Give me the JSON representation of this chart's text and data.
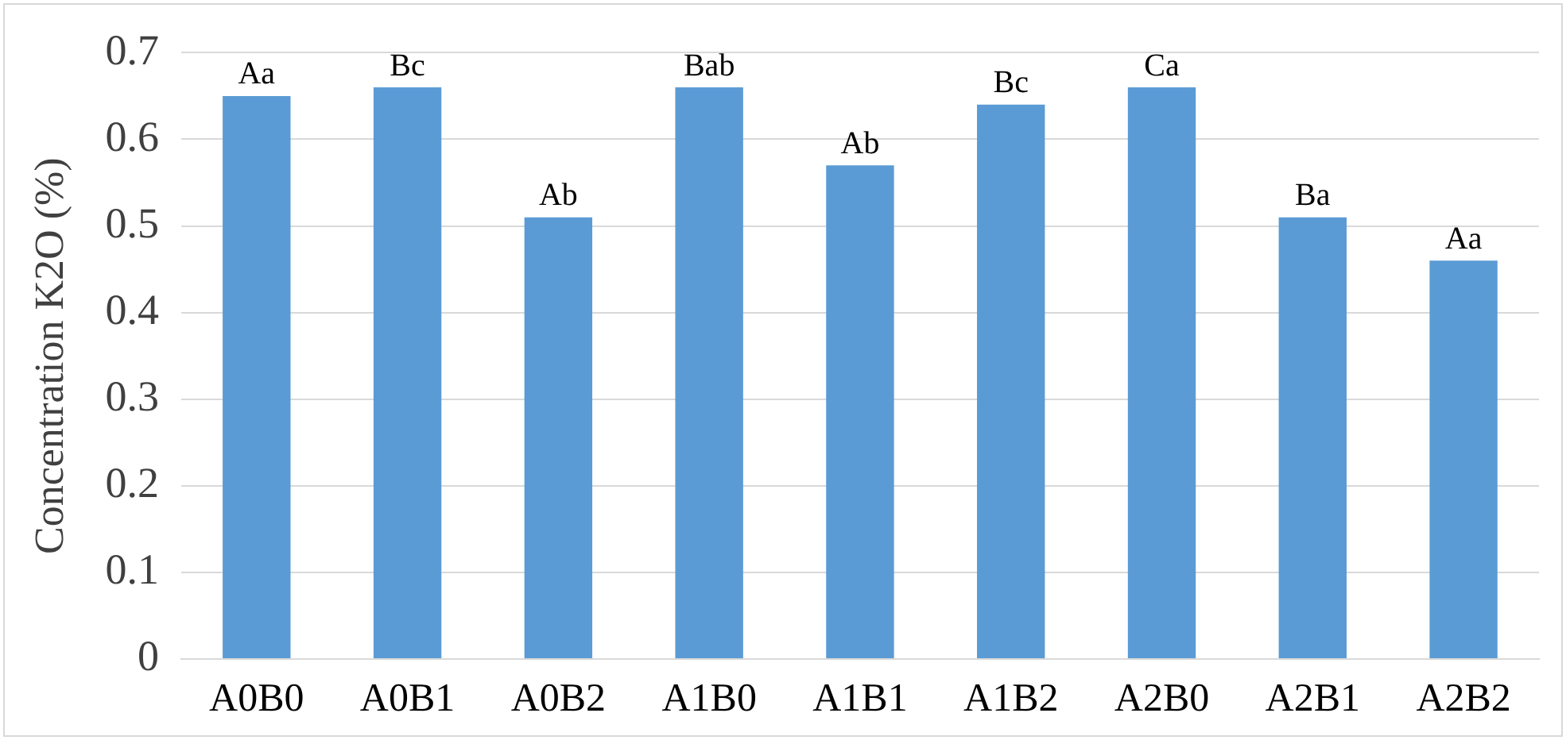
{
  "chart_data": {
    "type": "bar",
    "ylabel": "Concentration K2O (%)",
    "categories": [
      "A0B0",
      "A0B1",
      "A0B2",
      "A1B0",
      "A1B1",
      "A1B2",
      "A2B0",
      "A2B1",
      "A2B2"
    ],
    "values": [
      0.65,
      0.66,
      0.51,
      0.66,
      0.57,
      0.64,
      0.66,
      0.51,
      0.46
    ],
    "color": "#5b9bd5",
    "ylim": [
      0,
      0.7
    ],
    "yticks": [
      0,
      0.1,
      0.2,
      0.3,
      0.4,
      0.5,
      0.6,
      0.7
    ],
    "grid": "y",
    "legend": false,
    "annotations": [
      {
        "text": "Aa",
        "x": "A0B0",
        "y": 0.65
      },
      {
        "text": "Bc",
        "x": "A0B1",
        "y": 0.66
      },
      {
        "text": "Ab",
        "x": "A0B2",
        "y": 0.51
      },
      {
        "text": "Bab",
        "x": "A1B0",
        "y": 0.66
      },
      {
        "text": "Ab",
        "x": "A1B1",
        "y": 0.57
      },
      {
        "text": "Bc",
        "x": "A1B2",
        "y": 0.64
      },
      {
        "text": "Ca",
        "x": "A2B0",
        "y": 0.66
      },
      {
        "text": "Ba",
        "x": "A2B1",
        "y": 0.51
      },
      {
        "text": "Aa",
        "x": "A2B2",
        "y": 0.46
      }
    ]
  }
}
